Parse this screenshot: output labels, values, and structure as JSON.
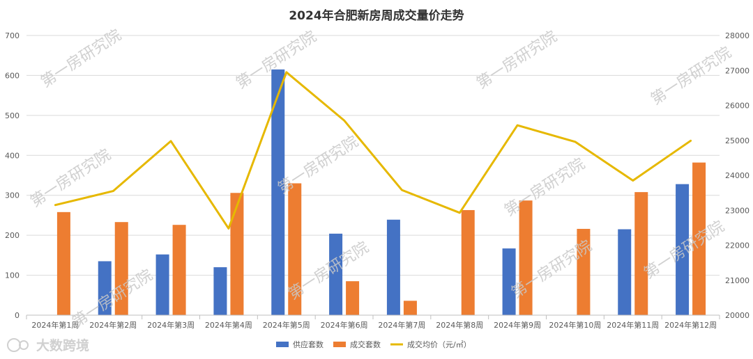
{
  "chart_data": {
    "type": "bar",
    "title": "2024年合肥新房周成交量价走势",
    "categories": [
      "2024年第1周",
      "2024年第2周",
      "2024年第3周",
      "2024年第4周",
      "2024年第5周",
      "2024年第6周",
      "2024年第7周",
      "2024年第8周",
      "2024年第9周",
      "2024年第10周",
      "2024年第11周",
      "2024年第12周"
    ],
    "series": [
      {
        "name": "供应套数",
        "type": "bar",
        "axis": "left",
        "color": "#4472c4",
        "values": [
          0,
          135,
          152,
          120,
          615,
          204,
          239,
          0,
          167,
          0,
          215,
          328
        ]
      },
      {
        "name": "成交套数",
        "type": "bar",
        "axis": "left",
        "color": "#ed7d31",
        "values": [
          258,
          233,
          226,
          306,
          330,
          85,
          36,
          263,
          287,
          216,
          308,
          382
        ]
      },
      {
        "name": "成交均价（元/㎡）",
        "type": "line",
        "axis": "right",
        "color": "#e6b800",
        "values": [
          23150,
          23550,
          24980,
          22480,
          26950,
          25570,
          23580,
          22930,
          25430,
          24960,
          23850,
          24990
        ]
      }
    ],
    "ylim": [
      0,
      700
    ],
    "yticks": [
      "0",
      "100",
      "200",
      "300",
      "400",
      "500",
      "600",
      "700"
    ],
    "y2lim": [
      20000,
      28000
    ],
    "y2ticks": [
      "20000",
      "21000",
      "22000",
      "23000",
      "24000",
      "25000",
      "26000",
      "27000",
      "28000"
    ],
    "grid": true,
    "legend_position": "bottom"
  },
  "watermark": "第一房研究院",
  "brand": "大数跨境"
}
